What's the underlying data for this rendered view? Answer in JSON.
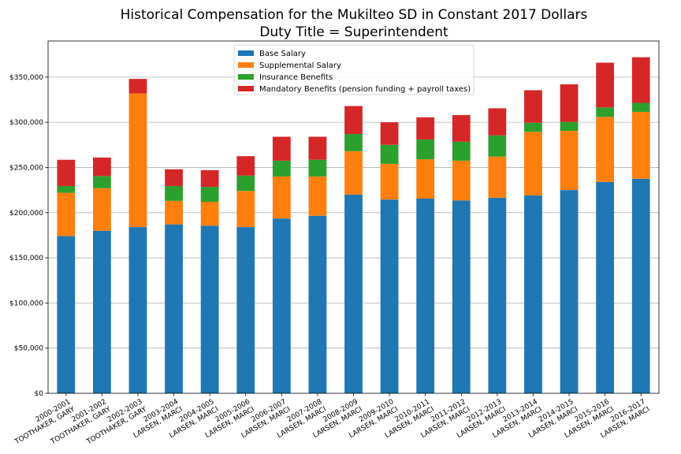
{
  "chart_data": {
    "type": "bar",
    "stacked": true,
    "title_lines": [
      "Historical Compensation for the Mukilteo SD in Constant 2017 Dollars",
      "Duty Title = Superintendent"
    ],
    "xlabel": "",
    "ylabel": "",
    "ylim": [
      0,
      390000
    ],
    "yticks": [
      0,
      50000,
      100000,
      150000,
      200000,
      250000,
      300000,
      350000
    ],
    "ytick_labels": [
      "$0",
      "$50,000",
      "$100,000",
      "$150,000",
      "$200,000",
      "$250,000",
      "$300,000",
      "$350,000"
    ],
    "grid": "horizontal",
    "legend_position": "top-center",
    "categories": [
      {
        "year": "2000-2001",
        "name": "TOOTHAKER, GARY"
      },
      {
        "year": "2001-2002",
        "name": "TOOTHAKER, GARY"
      },
      {
        "year": "2002-2003",
        "name": "TOOTHAKER, GARY"
      },
      {
        "year": "2003-2004",
        "name": "LARSEN, MARCI"
      },
      {
        "year": "2004-2005",
        "name": "LARSEN, MARCI"
      },
      {
        "year": "2005-2006",
        "name": "LARSEN, MARCI"
      },
      {
        "year": "2006-2007",
        "name": "LARSEN, MARCI"
      },
      {
        "year": "2007-2008",
        "name": "LARSEN, MARCI"
      },
      {
        "year": "2008-2009",
        "name": "LARSEN, MARCI"
      },
      {
        "year": "2009-2010",
        "name": "LARSEN, MARCI"
      },
      {
        "year": "2010-2011",
        "name": "LARSEN, MARCI"
      },
      {
        "year": "2011-2012",
        "name": "LARSEN, MARCI"
      },
      {
        "year": "2012-2013",
        "name": "LARSEN, MARCI"
      },
      {
        "year": "2013-2014",
        "name": "LARSEN, MARCI"
      },
      {
        "year": "2014-2015",
        "name": "LARSEN, MARCI"
      },
      {
        "year": "2015-2016",
        "name": "LARSEN, MARCI"
      },
      {
        "year": "2016-2017",
        "name": "LARSEN, MARCI"
      }
    ],
    "series": [
      {
        "name": "Base Salary",
        "color": "#1f77b4",
        "values": [
          174000,
          180000,
          184000,
          187000,
          185500,
          184000,
          193500,
          196500,
          220000,
          214500,
          215500,
          213500,
          216500,
          219000,
          225000,
          234000,
          237500
        ]
      },
      {
        "name": "Supplemental Salary",
        "color": "#ff7f0e",
        "values": [
          48000,
          47000,
          148000,
          26000,
          26500,
          40000,
          46500,
          43500,
          48000,
          39500,
          43500,
          44000,
          45500,
          70500,
          65500,
          72000,
          74000
        ]
      },
      {
        "name": "Insurance Benefits",
        "color": "#2ca02c",
        "values": [
          7500,
          13500,
          0,
          16500,
          16500,
          17000,
          17500,
          18500,
          19000,
          21000,
          22000,
          21000,
          23500,
          10000,
          10000,
          10500,
          10000
        ]
      },
      {
        "name": "Mandatory Benefits (pension funding + payroll taxes)",
        "color": "#d62728",
        "values": [
          29000,
          20500,
          16000,
          18500,
          18500,
          21500,
          26500,
          25500,
          31000,
          25000,
          24500,
          29500,
          30000,
          36000,
          41500,
          49500,
          50500
        ]
      }
    ]
  }
}
